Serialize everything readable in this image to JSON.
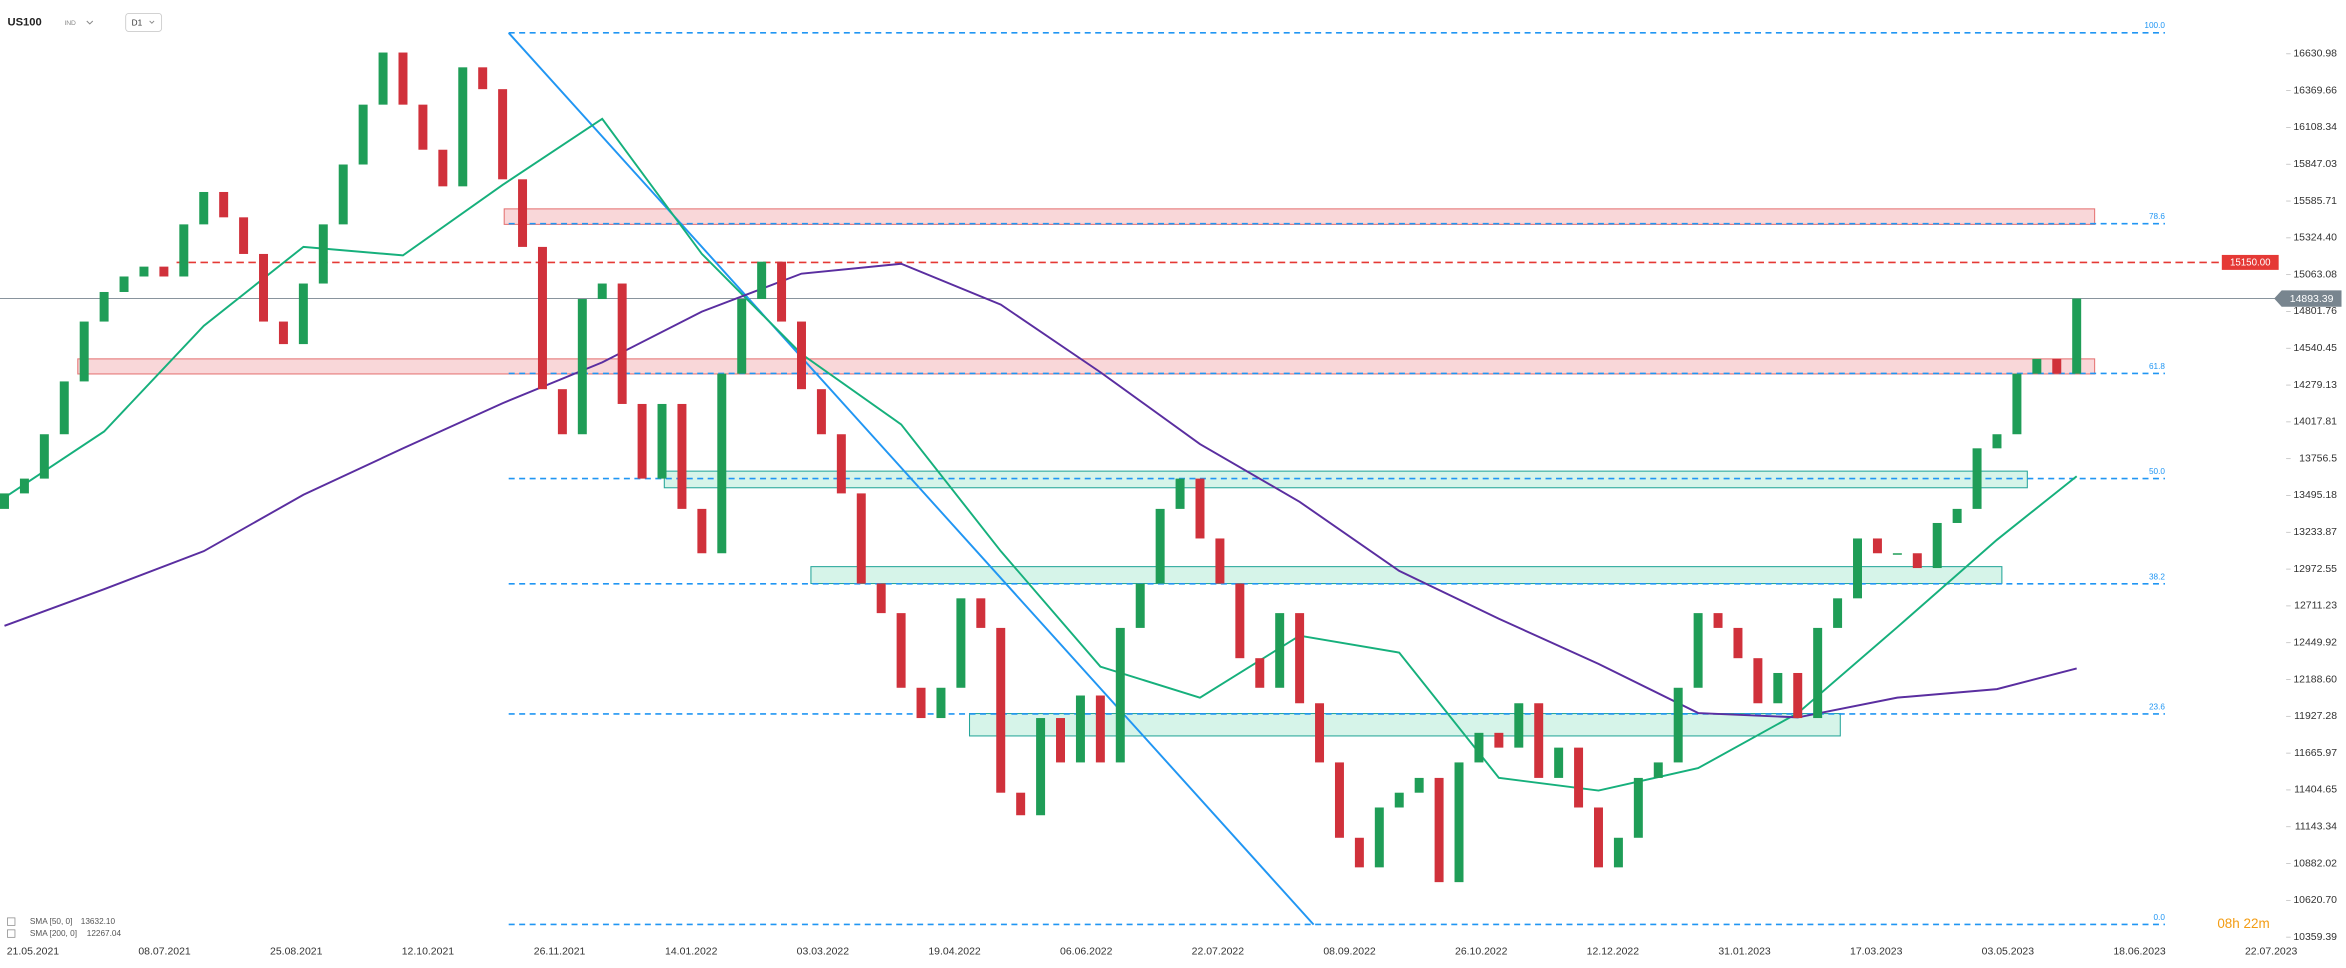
{
  "header": {
    "symbol": "US100",
    "market": "IND",
    "timeframe": "D1"
  },
  "timer": "08h 22m",
  "chart_data": {
    "type": "candlestick",
    "x_labels": [
      "21.05.2021",
      "08.07.2021",
      "25.08.2021",
      "12.10.2021",
      "26.11.2021",
      "14.01.2022",
      "03.03.2022",
      "19.04.2022",
      "06.06.2022",
      "22.07.2022",
      "08.09.2022",
      "26.10.2022",
      "12.12.2022",
      "31.01.2023",
      "17.03.2023",
      "03.05.2023",
      "18.06.2023",
      "22.07.2023"
    ],
    "open": [
      13400,
      13510,
      13615,
      13930,
      14305,
      14730,
      14940,
      15050,
      15120,
      15050,
      15420,
      15650,
      15470,
      15210,
      14730,
      14570,
      15000,
      15420,
      15845,
      16270,
      16640,
      16270,
      15950,
      15690,
      16535,
      16380,
      15740,
      15260,
      14250,
      13930,
      14890,
      15000,
      14145,
      13615,
      14145,
      13400,
      13085,
      14360,
      14890,
      15155,
      14730,
      14250,
      13930,
      13510,
      12870,
      12660,
      12130,
      11915,
      12130,
      12765,
      12555,
      11385,
      11225,
      11915,
      11600,
      12075,
      11600,
      12555,
      12870,
      13400,
      13615,
      13190,
      12870,
      12340,
      12130,
      12660,
      12020,
      11600,
      11065,
      10855,
      11280,
      11385,
      11490,
      10750,
      11600,
      11810,
      11705,
      12020,
      11490,
      11705,
      11280,
      10855,
      11065,
      11490,
      11600,
      12130,
      12660,
      12555,
      12340,
      12020,
      12235,
      11915,
      12555,
      12765,
      13190,
      13085,
      13085,
      12980,
      13300,
      13400,
      13830,
      13930,
      14360,
      14465,
      14360
    ],
    "close": [
      13510,
      13615,
      13930,
      14305,
      14730,
      14940,
      15050,
      15120,
      15050,
      15420,
      15650,
      15470,
      15210,
      14730,
      14570,
      15000,
      15420,
      15845,
      16270,
      16640,
      16270,
      15950,
      15690,
      16535,
      16380,
      15740,
      15260,
      14250,
      13930,
      14890,
      15000,
      14145,
      13615,
      14145,
      13400,
      13085,
      14360,
      14890,
      15155,
      14730,
      14250,
      13930,
      13510,
      12870,
      12660,
      12130,
      11915,
      12130,
      12765,
      12555,
      11385,
      11225,
      11915,
      11600,
      12075,
      11600,
      12555,
      12870,
      13400,
      13615,
      13190,
      12870,
      12340,
      12130,
      12660,
      12020,
      11600,
      11065,
      10855,
      11280,
      11385,
      11490,
      10750,
      11600,
      11810,
      11705,
      12020,
      11490,
      11705,
      11280,
      10855,
      11065,
      11490,
      11600,
      12130,
      12660,
      12555,
      12340,
      12020,
      12235,
      11915,
      12555,
      12765,
      13190,
      13085,
      13085,
      12980,
      13300,
      13400,
      13830,
      13930,
      14360,
      14465,
      14360,
      14893.39
    ],
    "up_color": "#1f9d57",
    "down_color": "#d0313b",
    "ylim": [
      10321,
      17013
    ],
    "yticks": [
      16630.98,
      16369.66,
      16108.34,
      15847.03,
      15585.71,
      {
        "value": 15324.4,
        "label": "15324.40"
      },
      15063.08,
      14801.76,
      14540.45,
      14279.13,
      14017.81,
      13756.5,
      13495.18,
      13233.87,
      12972.55,
      12711.23,
      12449.92,
      {
        "value": 12188.6,
        "label": "12188.60"
      },
      11927.28,
      11665.97,
      11404.65,
      11143.34,
      10882.02,
      {
        "value": 10620.7,
        "label": "10620.70"
      },
      10359.39
    ],
    "grid": false,
    "indicators": [
      {
        "name": "SMA [50, 0]",
        "value_label": "13632.10",
        "color": "#16b07c",
        "x": [
          0,
          5,
          10,
          15,
          20,
          25,
          30,
          35,
          40,
          45,
          50,
          55,
          60,
          65,
          70,
          75,
          80,
          85,
          90,
          95,
          100,
          104
        ],
        "values": [
          13480,
          13950,
          14700,
          15260,
          15200,
          15700,
          16170,
          15210,
          14500,
          14000,
          13100,
          12280,
          12060,
          12500,
          12380,
          11490,
          11400,
          11560,
          11950,
          12560,
          13180,
          13632.1
        ]
      },
      {
        "name": "SMA [200, 0]",
        "value_label": "12267.04",
        "color": "#5a2ea0",
        "x": [
          0,
          5,
          10,
          15,
          20,
          25,
          30,
          35,
          40,
          45,
          50,
          55,
          60,
          65,
          70,
          75,
          80,
          85,
          90,
          95,
          100,
          104
        ],
        "values": [
          12570,
          12830,
          13100,
          13500,
          13830,
          14150,
          14440,
          14800,
          15070,
          15140,
          14850,
          14370,
          13860,
          13450,
          12960,
          12620,
          12300,
          11950,
          11920,
          12060,
          12120,
          12267.04
        ]
      }
    ],
    "fib_color": "#2196f3",
    "fib_levels": [
      {
        "label": "100.0",
        "price": 16780
      },
      {
        "label": "78.6",
        "price": 15425
      },
      {
        "label": "61.8",
        "price": 14362
      },
      {
        "label": "50.0",
        "price": 13615
      },
      {
        "label": "38.2",
        "price": 12868
      },
      {
        "label": "23.6",
        "price": 11944
      },
      {
        "label": "0.0",
        "price": 10450
      }
    ],
    "zones": [
      {
        "low": 15420,
        "high": 15530,
        "fill": "#f7c9cc",
        "stroke": "#e57373"
      },
      {
        "low": 14358,
        "high": 14465,
        "fill": "#f7c9cc",
        "stroke": "#e57373"
      },
      {
        "low": 13550,
        "high": 13668,
        "fill": "#c8f0e2",
        "stroke": "#26a69a"
      },
      {
        "low": 12870,
        "high": 12990,
        "fill": "#c8f0e2",
        "stroke": "#26a69a"
      },
      {
        "low": 11788,
        "high": 11947,
        "fill": "#c8f0e2",
        "stroke": "#26a69a"
      }
    ],
    "resistance": {
      "price": 15150,
      "label": "15150.00",
      "color": "#e53935"
    },
    "last_price": {
      "price": 14893.39,
      "label": "14893.39",
      "color": "#78858f"
    }
  }
}
